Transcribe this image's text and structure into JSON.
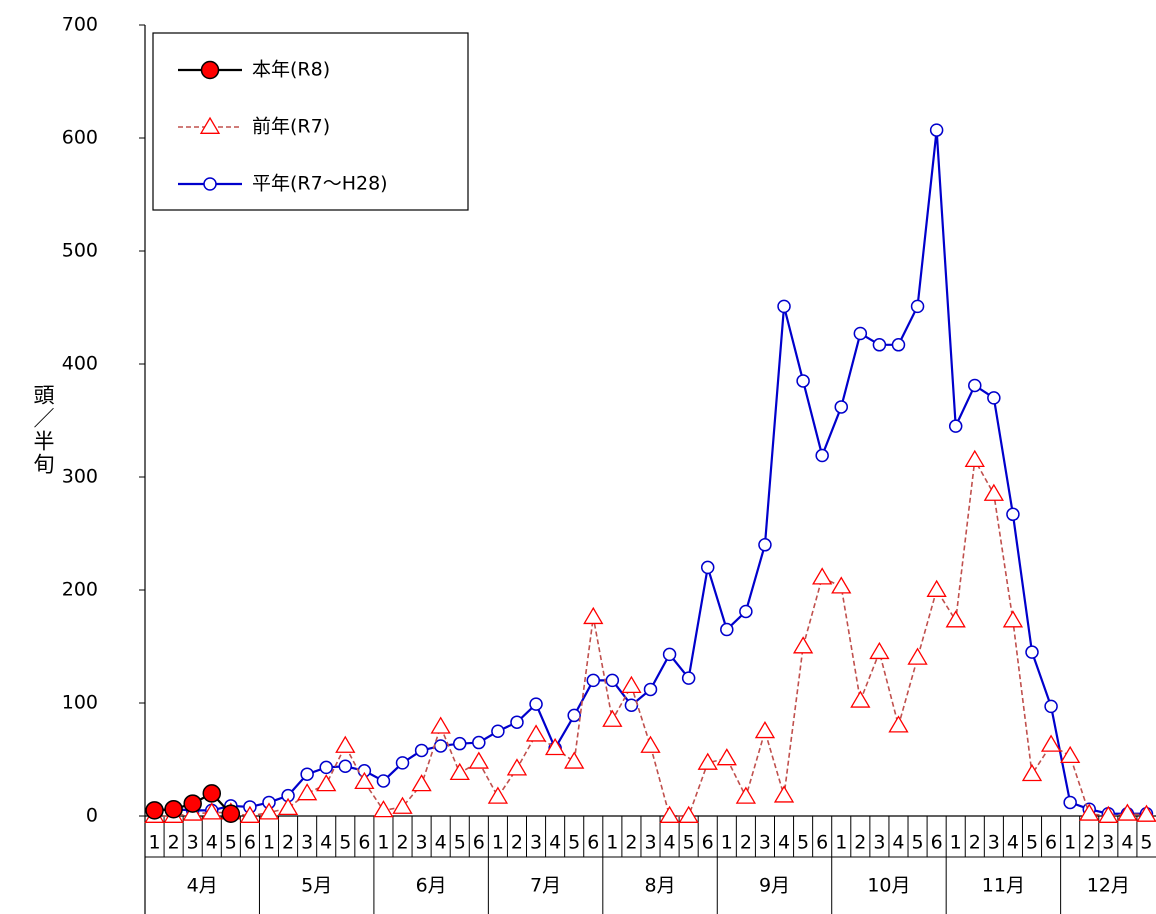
{
  "chart_data": {
    "type": "line",
    "y_label": "頭／半旬",
    "categories": [
      "1",
      "2",
      "3",
      "4",
      "5",
      "6",
      "1",
      "2",
      "3",
      "4",
      "5",
      "6",
      "1",
      "2",
      "3",
      "4",
      "5",
      "6",
      "1",
      "2",
      "3",
      "4",
      "5",
      "6",
      "1",
      "2",
      "3",
      "4",
      "5",
      "6",
      "1",
      "2",
      "3",
      "4",
      "5",
      "6",
      "1",
      "2",
      "3",
      "4",
      "5",
      "6",
      "1",
      "2",
      "3",
      "4",
      "5",
      "6",
      "1",
      "2",
      "3",
      "4",
      "5"
    ],
    "month_labels": [
      "4月",
      "5月",
      "6月",
      "7月",
      "8月",
      "9月",
      "10月",
      "11月",
      "12月"
    ],
    "ylim": [
      0,
      700
    ],
    "yticks": [
      0,
      100,
      200,
      300,
      400,
      500,
      600,
      700
    ],
    "grid": false,
    "legend": "upper left",
    "series": [
      {
        "name": "本年(R8)",
        "color": "#ff0000",
        "line_color": "#000000",
        "marker": "circle-filled",
        "values": [
          5,
          6,
          11,
          20,
          2,
          null,
          null,
          null,
          null,
          null,
          null,
          null,
          null,
          null,
          null,
          null,
          null,
          null,
          null,
          null,
          null,
          null,
          null,
          null,
          null,
          null,
          null,
          null,
          null,
          null,
          null,
          null,
          null,
          null,
          null,
          null,
          null,
          null,
          null,
          null,
          null,
          null,
          null,
          null,
          null,
          null,
          null,
          null,
          null,
          null,
          null,
          null,
          null
        ]
      },
      {
        "name": "前年(R7)",
        "color": "#c0504d",
        "marker_color": "#ff0000",
        "marker": "triangle",
        "dashed": true,
        "values": [
          0,
          0,
          2,
          3,
          3,
          0,
          3,
          7,
          20,
          28,
          62,
          30,
          5,
          8,
          28,
          79,
          38,
          48,
          17,
          42,
          72,
          60,
          48,
          176,
          85,
          115,
          62,
          0,
          0,
          47,
          51,
          17,
          75,
          18,
          150,
          211,
          203,
          102,
          145,
          80,
          140,
          200,
          173,
          315,
          285,
          173,
          37,
          63,
          53,
          2,
          0,
          2,
          1
        ]
      },
      {
        "name": "平年(R7～H28)",
        "color": "#0000cc",
        "marker": "circle",
        "values": [
          5,
          6,
          5,
          5,
          9,
          8,
          12,
          18,
          37,
          43,
          44,
          40,
          31,
          47,
          58,
          62,
          64,
          65,
          75,
          83,
          99,
          60,
          89,
          120,
          120,
          98,
          112,
          143,
          122,
          220,
          165,
          181,
          240,
          451,
          385,
          319,
          362,
          427,
          417,
          417,
          451,
          607,
          345,
          381,
          370,
          267,
          145,
          97,
          12,
          6,
          2,
          2,
          2
        ]
      }
    ]
  }
}
